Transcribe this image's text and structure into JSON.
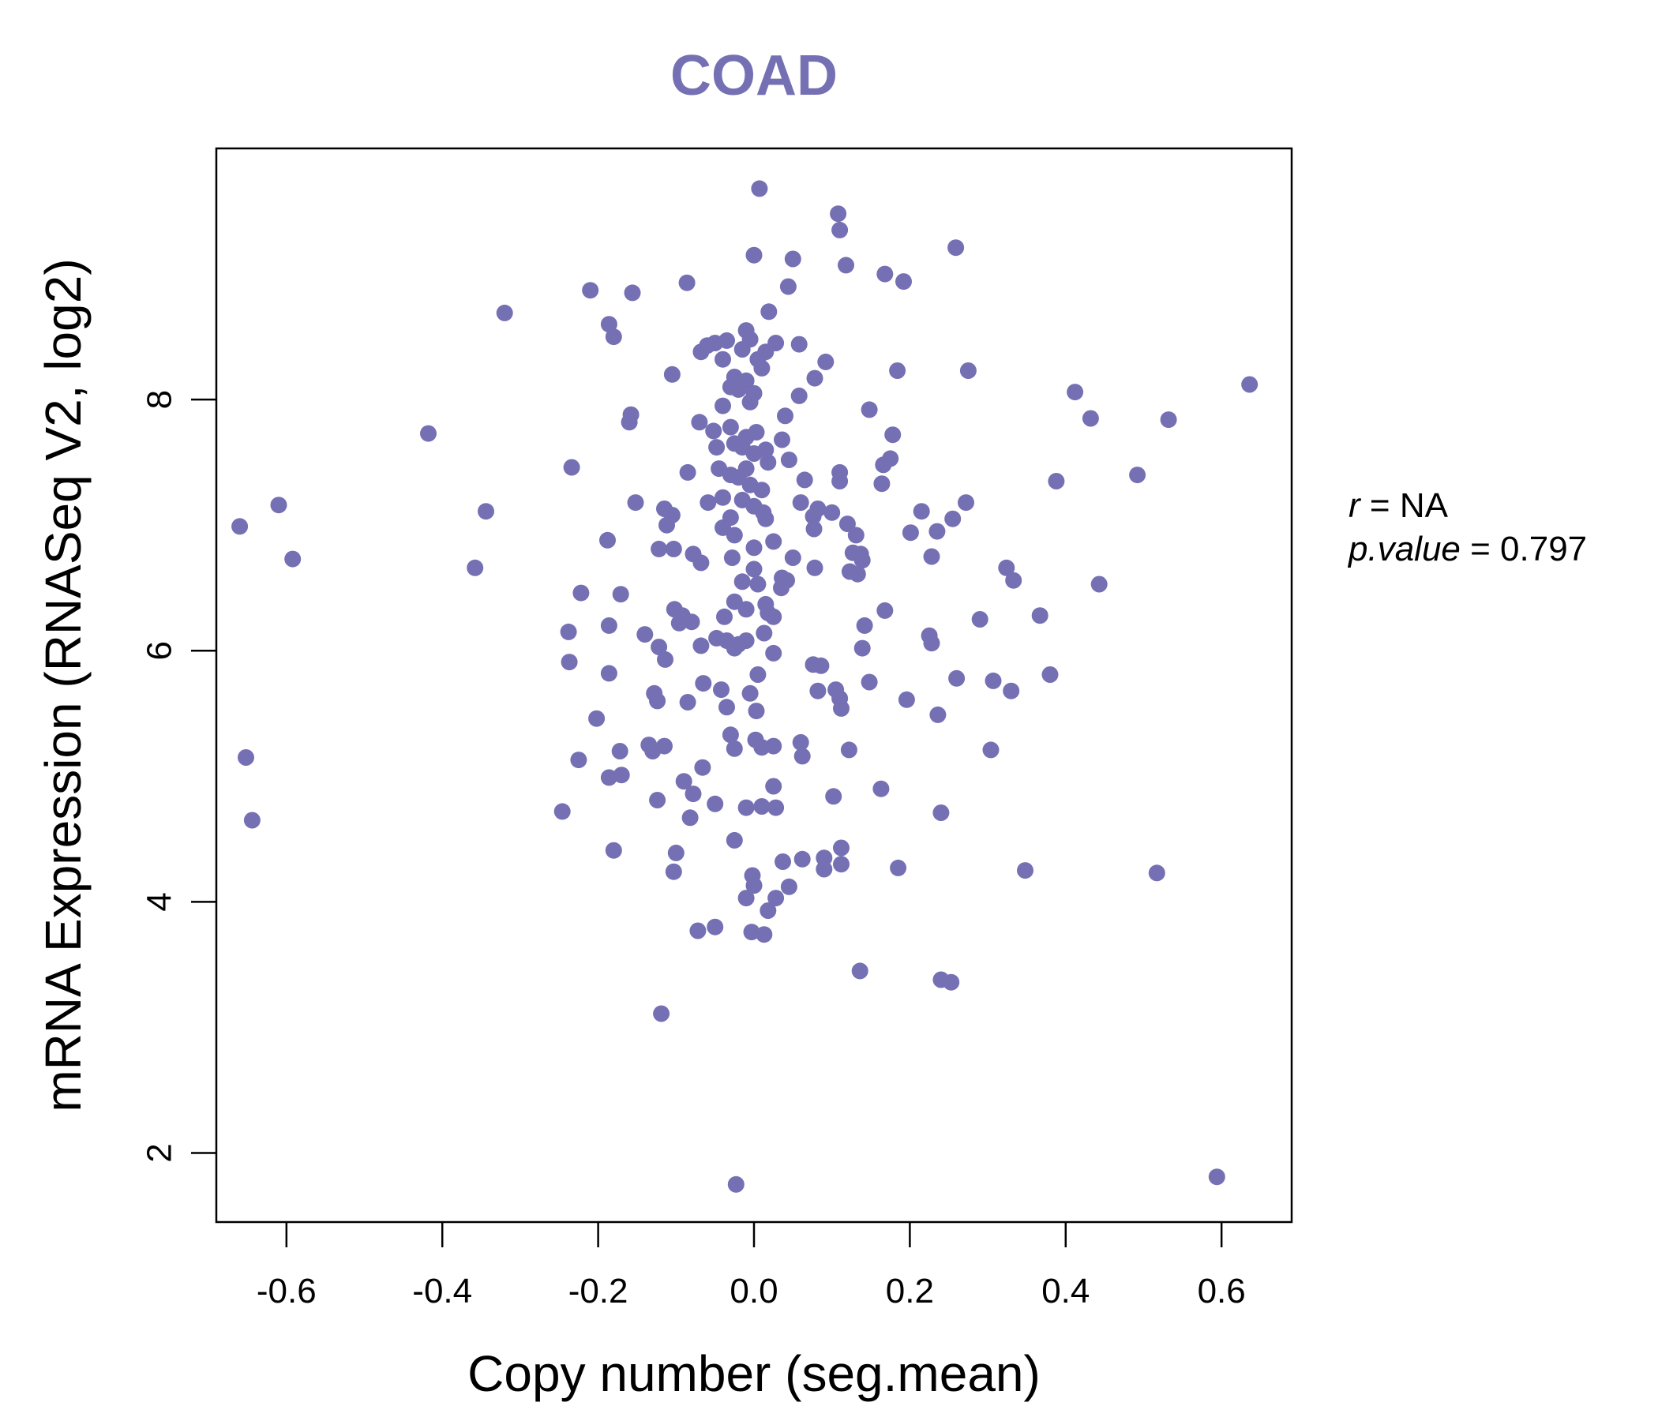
{
  "colors": {
    "accent": "#7570b3"
  },
  "chart_data": {
    "type": "scatter",
    "title": "COAD",
    "xlabel": "Copy number (seg.mean)",
    "ylabel": "mRNA Expression (RNASeq V2, log2)",
    "xlim": [
      -0.69,
      0.69
    ],
    "ylim": [
      1.45,
      10.0
    ],
    "x_ticks": [
      -0.6,
      -0.4,
      -0.2,
      0.0,
      0.2,
      0.4,
      0.6
    ],
    "x_tick_labels": [
      "-0.6",
      "-0.4",
      "-0.2",
      "0.0",
      "0.2",
      "0.4",
      "0.6"
    ],
    "y_ticks": [
      2,
      4,
      6,
      8
    ],
    "y_tick_labels": [
      "2",
      "4",
      "6",
      "8"
    ],
    "grid": false,
    "stats": {
      "r_label": "r",
      "r_value": "NA",
      "p_label": "p.value",
      "p_value": "0.797"
    },
    "points": [
      [
        0.007,
        9.68
      ],
      [
        0.108,
        9.48
      ],
      [
        0.11,
        9.35
      ],
      [
        0.0,
        9.15
      ],
      [
        0.05,
        9.12
      ],
      [
        0.118,
        9.07
      ],
      [
        0.259,
        9.21
      ],
      [
        0.168,
        9.0
      ],
      [
        0.192,
        8.94
      ],
      [
        -0.21,
        8.87
      ],
      [
        -0.156,
        8.85
      ],
      [
        -0.086,
        8.93
      ],
      [
        0.044,
        8.9
      ],
      [
        -0.32,
        8.69
      ],
      [
        0.019,
        8.7
      ],
      [
        -0.186,
        8.6
      ],
      [
        -0.18,
        8.5
      ],
      [
        -0.01,
        8.55
      ],
      [
        -0.035,
        8.47
      ],
      [
        -0.06,
        8.43
      ],
      [
        -0.068,
        8.38
      ],
      [
        -0.05,
        8.45
      ],
      [
        0.028,
        8.45
      ],
      [
        0.058,
        8.44
      ],
      [
        -0.04,
        8.32
      ],
      [
        0.015,
        8.38
      ],
      [
        0.092,
        8.3
      ],
      [
        -0.005,
        8.48
      ],
      [
        -0.015,
        8.4
      ],
      [
        0.005,
        8.32
      ],
      [
        0.275,
        8.23
      ],
      [
        0.184,
        8.23
      ],
      [
        -0.105,
        8.2
      ],
      [
        0.01,
        8.25
      ],
      [
        -0.025,
        8.18
      ],
      [
        -0.01,
        8.15
      ],
      [
        0.078,
        8.17
      ],
      [
        -0.03,
        8.1
      ],
      [
        0.0,
        8.05
      ],
      [
        -0.005,
        7.98
      ],
      [
        0.058,
        8.03
      ],
      [
        0.412,
        8.06
      ],
      [
        0.636,
        8.12
      ],
      [
        -0.04,
        7.95
      ],
      [
        -0.02,
        8.08
      ],
      [
        0.148,
        7.92
      ],
      [
        -0.158,
        7.88
      ],
      [
        -0.16,
        7.82
      ],
      [
        0.04,
        7.87
      ],
      [
        0.432,
        7.85
      ],
      [
        0.532,
        7.84
      ],
      [
        -0.07,
        7.82
      ],
      [
        -0.052,
        7.75
      ],
      [
        -0.03,
        7.78
      ],
      [
        -0.01,
        7.7
      ],
      [
        0.003,
        7.74
      ],
      [
        -0.418,
        7.73
      ],
      [
        0.178,
        7.72
      ],
      [
        0.036,
        7.68
      ],
      [
        -0.025,
        7.65
      ],
      [
        -0.015,
        7.62
      ],
      [
        0.0,
        7.57
      ],
      [
        0.015,
        7.6
      ],
      [
        -0.048,
        7.62
      ],
      [
        0.045,
        7.52
      ],
      [
        0.175,
        7.53
      ],
      [
        0.166,
        7.48
      ],
      [
        -0.045,
        7.45
      ],
      [
        -0.03,
        7.4
      ],
      [
        -0.01,
        7.45
      ],
      [
        0.018,
        7.5
      ],
      [
        0.11,
        7.42
      ],
      [
        -0.234,
        7.46
      ],
      [
        -0.085,
        7.42
      ],
      [
        0.065,
        7.36
      ],
      [
        0.388,
        7.35
      ],
      [
        0.492,
        7.4
      ],
      [
        0.164,
        7.33
      ],
      [
        0.11,
        7.35
      ],
      [
        -0.02,
        7.38
      ],
      [
        -0.005,
        7.32
      ],
      [
        0.01,
        7.28
      ],
      [
        -0.04,
        7.22
      ],
      [
        -0.015,
        7.2
      ],
      [
        0.0,
        7.15
      ],
      [
        0.012,
        7.1
      ],
      [
        -0.059,
        7.18
      ],
      [
        -0.152,
        7.18
      ],
      [
        0.06,
        7.18
      ],
      [
        0.082,
        7.13
      ],
      [
        0.1,
        7.1
      ],
      [
        0.272,
        7.18
      ],
      [
        0.215,
        7.11
      ],
      [
        -0.61,
        7.16
      ],
      [
        -0.344,
        7.11
      ],
      [
        -0.115,
        7.13
      ],
      [
        -0.105,
        7.08
      ],
      [
        -0.112,
        7.0
      ],
      [
        0.015,
        7.05
      ],
      [
        -0.03,
        7.06
      ],
      [
        0.076,
        7.07
      ],
      [
        0.12,
        7.01
      ],
      [
        0.255,
        7.05
      ],
      [
        -0.66,
        6.99
      ],
      [
        0.077,
        6.97
      ],
      [
        -0.04,
        6.98
      ],
      [
        -0.025,
        6.92
      ],
      [
        0.131,
        6.92
      ],
      [
        0.201,
        6.94
      ],
      [
        0.235,
        6.95
      ],
      [
        -0.188,
        6.88
      ],
      [
        0.025,
        6.87
      ],
      [
        -0.122,
        6.81
      ],
      [
        -0.103,
        6.81
      ],
      [
        0.0,
        6.82
      ],
      [
        -0.078,
        6.77
      ],
      [
        0.127,
        6.78
      ],
      [
        0.137,
        6.77
      ],
      [
        0.228,
        6.75
      ],
      [
        -0.592,
        6.73
      ],
      [
        -0.028,
        6.74
      ],
      [
        0.05,
        6.74
      ],
      [
        0.139,
        6.72
      ],
      [
        -0.068,
        6.7
      ],
      [
        -0.358,
        6.66
      ],
      [
        0.123,
        6.63
      ],
      [
        0.078,
        6.66
      ],
      [
        0.324,
        6.66
      ],
      [
        0.133,
        6.61
      ],
      [
        0.036,
        6.58
      ],
      [
        0.0,
        6.65
      ],
      [
        -0.015,
        6.55
      ],
      [
        0.005,
        6.53
      ],
      [
        0.042,
        6.56
      ],
      [
        0.333,
        6.56
      ],
      [
        0.443,
        6.53
      ],
      [
        0.035,
        6.5
      ],
      [
        -0.222,
        6.46
      ],
      [
        -0.171,
        6.45
      ],
      [
        -0.025,
        6.39
      ],
      [
        0.015,
        6.37
      ],
      [
        0.018,
        6.3
      ],
      [
        -0.102,
        6.33
      ],
      [
        -0.01,
        6.33
      ],
      [
        0.168,
        6.32
      ],
      [
        0.025,
        6.27
      ],
      [
        0.367,
        6.28
      ],
      [
        0.29,
        6.25
      ],
      [
        -0.092,
        6.28
      ],
      [
        -0.038,
        6.27
      ],
      [
        -0.08,
        6.23
      ],
      [
        -0.096,
        6.22
      ],
      [
        -0.186,
        6.2
      ],
      [
        0.142,
        6.2
      ],
      [
        -0.238,
        6.15
      ],
      [
        -0.14,
        6.13
      ],
      [
        0.013,
        6.14
      ],
      [
        0.225,
        6.12
      ],
      [
        -0.048,
        6.1
      ],
      [
        -0.035,
        6.08
      ],
      [
        -0.01,
        6.08
      ],
      [
        -0.025,
        6.02
      ],
      [
        -0.02,
        6.05
      ],
      [
        0.228,
        6.06
      ],
      [
        -0.068,
        6.04
      ],
      [
        -0.122,
        6.03
      ],
      [
        0.139,
        6.02
      ],
      [
        0.025,
        5.98
      ],
      [
        -0.114,
        5.93
      ],
      [
        -0.237,
        5.91
      ],
      [
        0.076,
        5.89
      ],
      [
        0.086,
        5.88
      ],
      [
        -0.186,
        5.82
      ],
      [
        0.005,
        5.81
      ],
      [
        0.38,
        5.81
      ],
      [
        0.26,
        5.78
      ],
      [
        0.307,
        5.76
      ],
      [
        0.148,
        5.75
      ],
      [
        -0.065,
        5.74
      ],
      [
        -0.042,
        5.69
      ],
      [
        0.33,
        5.68
      ],
      [
        0.082,
        5.68
      ],
      [
        0.105,
        5.69
      ],
      [
        0.11,
        5.62
      ],
      [
        -0.128,
        5.66
      ],
      [
        -0.124,
        5.6
      ],
      [
        -0.085,
        5.59
      ],
      [
        -0.005,
        5.66
      ],
      [
        0.196,
        5.61
      ],
      [
        0.112,
        5.54
      ],
      [
        -0.035,
        5.55
      ],
      [
        0.003,
        5.52
      ],
      [
        0.236,
        5.49
      ],
      [
        -0.202,
        5.46
      ],
      [
        -0.03,
        5.33
      ],
      [
        0.002,
        5.29
      ],
      [
        0.06,
        5.27
      ],
      [
        0.01,
        5.23
      ],
      [
        0.025,
        5.24
      ],
      [
        0.122,
        5.21
      ],
      [
        0.304,
        5.21
      ],
      [
        -0.135,
        5.25
      ],
      [
        -0.115,
        5.24
      ],
      [
        -0.025,
        5.22
      ],
      [
        -0.172,
        5.2
      ],
      [
        -0.13,
        5.2
      ],
      [
        0.062,
        5.16
      ],
      [
        -0.652,
        5.15
      ],
      [
        -0.225,
        5.13
      ],
      [
        -0.066,
        5.07
      ],
      [
        -0.186,
        4.99
      ],
      [
        -0.17,
        5.01
      ],
      [
        -0.09,
        4.96
      ],
      [
        0.025,
        4.92
      ],
      [
        0.163,
        4.9
      ],
      [
        -0.078,
        4.86
      ],
      [
        -0.124,
        4.81
      ],
      [
        0.102,
        4.84
      ],
      [
        -0.05,
        4.78
      ],
      [
        -0.01,
        4.75
      ],
      [
        0.01,
        4.76
      ],
      [
        0.028,
        4.75
      ],
      [
        0.24,
        4.71
      ],
      [
        -0.246,
        4.72
      ],
      [
        -0.082,
        4.67
      ],
      [
        -0.644,
        4.65
      ],
      [
        -0.025,
        4.49
      ],
      [
        0.112,
        4.43
      ],
      [
        -0.18,
        4.41
      ],
      [
        -0.1,
        4.39
      ],
      [
        0.09,
        4.35
      ],
      [
        0.062,
        4.34
      ],
      [
        0.037,
        4.32
      ],
      [
        0.112,
        4.3
      ],
      [
        0.185,
        4.27
      ],
      [
        0.09,
        4.26
      ],
      [
        0.348,
        4.25
      ],
      [
        0.517,
        4.23
      ],
      [
        -0.103,
        4.24
      ],
      [
        -0.002,
        4.21
      ],
      [
        0.0,
        4.13
      ],
      [
        0.045,
        4.12
      ],
      [
        -0.01,
        4.03
      ],
      [
        0.028,
        4.03
      ],
      [
        0.018,
        3.93
      ],
      [
        -0.072,
        3.77
      ],
      [
        -0.05,
        3.8
      ],
      [
        -0.003,
        3.76
      ],
      [
        0.013,
        3.74
      ],
      [
        0.136,
        3.45
      ],
      [
        0.24,
        3.38
      ],
      [
        0.253,
        3.36
      ],
      [
        -0.119,
        3.11
      ],
      [
        -0.023,
        1.75
      ],
      [
        0.594,
        1.81
      ]
    ]
  }
}
